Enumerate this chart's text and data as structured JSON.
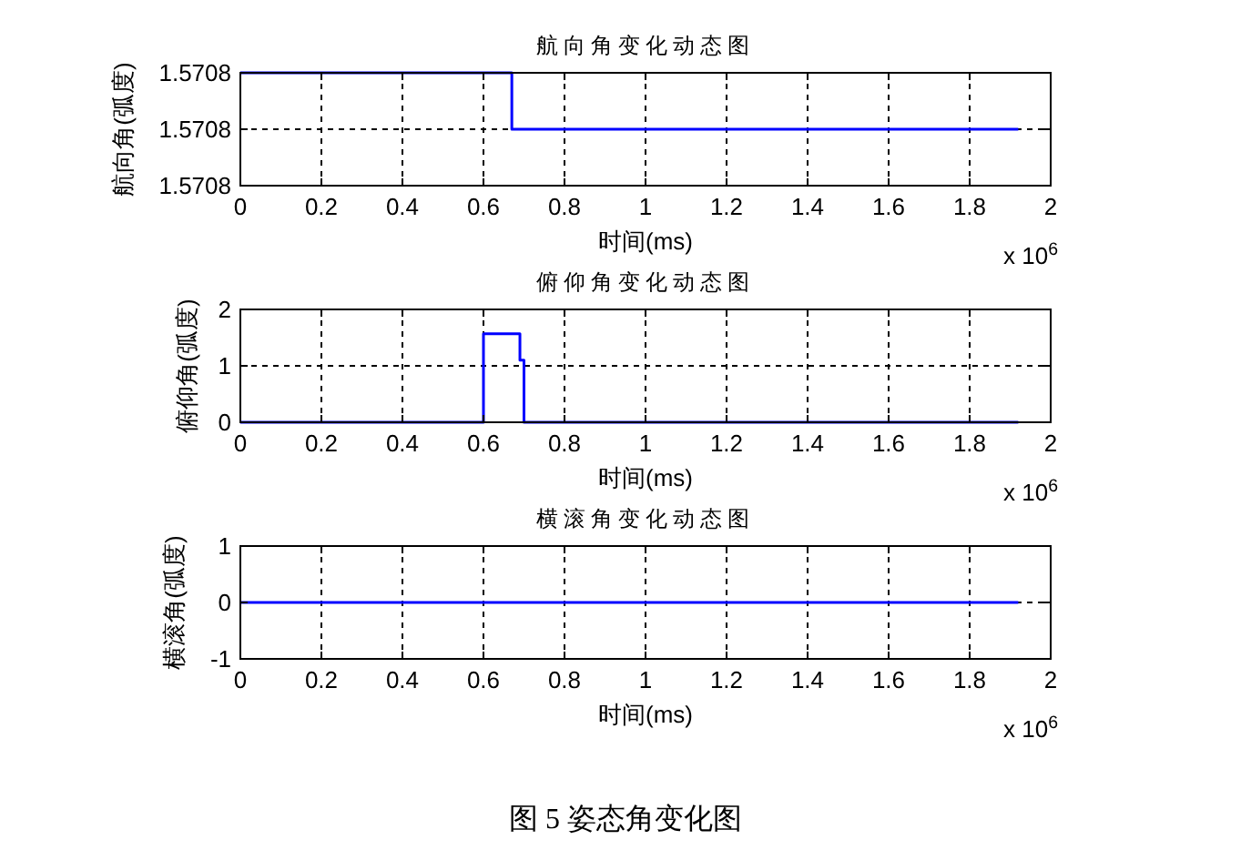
{
  "chart_data": [
    {
      "type": "step",
      "title": "航向角变化动态图",
      "xlabel": "时间(ms)",
      "ylabel": "航向角(弧度)",
      "x": [
        0,
        0.67,
        1.92
      ],
      "values": [
        1.5707964,
        1.5707963,
        1.5707963
      ],
      "color": "#0000ff",
      "xlim": [
        0,
        2
      ],
      "xticks": [
        0,
        0.2,
        0.4,
        0.6,
        0.8,
        1,
        1.2,
        1.4,
        1.6,
        1.8,
        2
      ],
      "ylim": [
        1.5707962,
        1.5707964
      ],
      "yticks": [
        {
          "value": 1.5707962,
          "label": "1.5708"
        },
        {
          "value": 1.5707963,
          "label": "1.5708"
        },
        {
          "value": 1.5707964,
          "label": "1.5708"
        }
      ],
      "grid": true,
      "annotations": [
        "x 10$^{6}$"
      ]
    },
    {
      "type": "step",
      "title": "俯仰角变化动态图",
      "xlabel": "时间(ms)",
      "ylabel": "俯仰角(弧度)",
      "x": [
        0,
        0.6,
        0.69,
        0.7,
        1.92
      ],
      "values": [
        0,
        1.57,
        1.1,
        0,
        0
      ],
      "color": "#0000ff",
      "xlim": [
        0,
        2
      ],
      "xticks": [
        0,
        0.2,
        0.4,
        0.6,
        0.8,
        1,
        1.2,
        1.4,
        1.6,
        1.8,
        2
      ],
      "ylim": [
        0,
        2
      ],
      "yticks": [
        0,
        1,
        2
      ],
      "grid": true,
      "annotations": [
        "x 10$^{6}$"
      ]
    },
    {
      "type": "line",
      "title": "横滚角变化动态图",
      "xlabel": "时间(ms)",
      "ylabel": "横滚角(弧度)",
      "x": [
        0,
        1.92
      ],
      "values": [
        0,
        0
      ],
      "color": "#0000ff",
      "xlim": [
        0,
        2
      ],
      "xticks": [
        0,
        0.2,
        0.4,
        0.6,
        0.8,
        1,
        1.2,
        1.4,
        1.6,
        1.8,
        2
      ],
      "ylim": [
        -1,
        1
      ],
      "yticks": [
        -1,
        0,
        1
      ],
      "grid": true,
      "annotations": [
        "x 10$^{6}$",
        "图 5 姿态角变化图"
      ]
    }
  ]
}
